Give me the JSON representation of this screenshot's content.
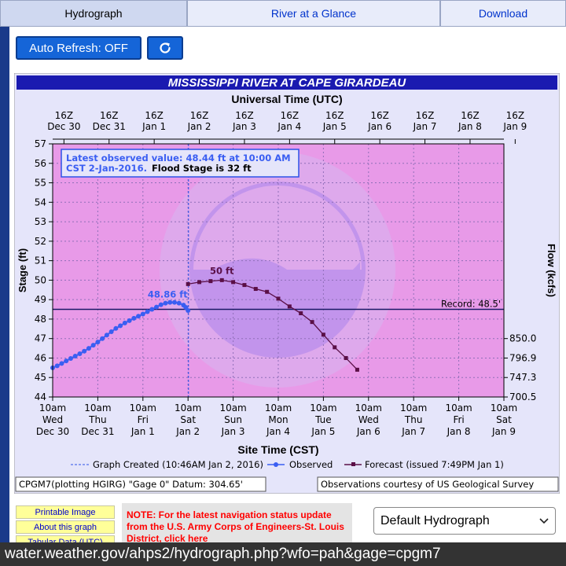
{
  "tabs": [
    {
      "label": "Hydrograph",
      "active": true
    },
    {
      "label": "River at a Glance",
      "active": false
    },
    {
      "label": "Download",
      "active": false
    }
  ],
  "controls": {
    "auto_refresh_label": "Auto Refresh: OFF",
    "refresh_icon": "refresh-icon"
  },
  "chart_data": {
    "type": "line",
    "title": "MISSISSIPPI RIVER AT CAPE GIRARDEAU",
    "top_axis_title": "Universal Time (UTC)",
    "top_ticks": [
      {
        "hour": "16Z",
        "date": "Dec 30"
      },
      {
        "hour": "16Z",
        "date": "Dec 31"
      },
      {
        "hour": "16Z",
        "date": "Jan 1"
      },
      {
        "hour": "16Z",
        "date": "Jan 2"
      },
      {
        "hour": "16Z",
        "date": "Jan 3"
      },
      {
        "hour": "16Z",
        "date": "Jan 4"
      },
      {
        "hour": "16Z",
        "date": "Jan 5"
      },
      {
        "hour": "16Z",
        "date": "Jan 6"
      },
      {
        "hour": "16Z",
        "date": "Jan 7"
      },
      {
        "hour": "16Z",
        "date": "Jan 8"
      },
      {
        "hour": "16Z",
        "date": "Jan 9"
      }
    ],
    "bottom_ticks": [
      {
        "time": "10am",
        "day": "Wed",
        "date": "Dec 30"
      },
      {
        "time": "10am",
        "day": "Thu",
        "date": "Dec 31"
      },
      {
        "time": "10am",
        "day": "Fri",
        "date": "Jan 1"
      },
      {
        "time": "10am",
        "day": "Sat",
        "date": "Jan 2"
      },
      {
        "time": "10am",
        "day": "Sun",
        "date": "Jan 3"
      },
      {
        "time": "10am",
        "day": "Mon",
        "date": "Jan 4"
      },
      {
        "time": "10am",
        "day": "Tue",
        "date": "Jan 5"
      },
      {
        "time": "10am",
        "day": "Wed",
        "date": "Jan 6"
      },
      {
        "time": "10am",
        "day": "Thu",
        "date": "Jan 7"
      },
      {
        "time": "10am",
        "day": "Fri",
        "date": "Jan 8"
      },
      {
        "time": "10am",
        "day": "Sat",
        "date": "Jan 9"
      }
    ],
    "xlabel": "Site Time (CST)",
    "ylabel": "Stage (ft)",
    "y2label": "Flow (kcfs)",
    "xlim": [
      0,
      10
    ],
    "ylim": [
      44,
      57
    ],
    "yticks": [
      44,
      45,
      46,
      47,
      48,
      49,
      50,
      51,
      52,
      53,
      54,
      55,
      56,
      57
    ],
    "y2ticks": [
      {
        "stage": 47,
        "label": "850.0"
      },
      {
        "stage": 46,
        "label": "796.9"
      },
      {
        "stage": 45,
        "label": "747.3"
      },
      {
        "stage": 44,
        "label": "700.5"
      }
    ],
    "record_stage": 48.5,
    "record_label": "Record: 48.5'",
    "graph_created_x": 3.01,
    "info_line1": "Latest observed value: 48.44 ft at 10:00 AM",
    "info_line2a": "CST 2-Jan-2016.",
    "info_line2b": "Flood Stage is 32 ft",
    "observed_peak_label": "48.86 ft",
    "observed_peak": [
      2.55,
      48.86
    ],
    "forecast_peak_label": "50 ft",
    "forecast_peak": [
      3.75,
      50.0
    ],
    "series": [
      {
        "name": "Observed",
        "color": "#3a5ef2",
        "points": [
          [
            0.0,
            45.5
          ],
          [
            0.1,
            45.6
          ],
          [
            0.2,
            45.72
          ],
          [
            0.3,
            45.85
          ],
          [
            0.4,
            45.98
          ],
          [
            0.5,
            46.1
          ],
          [
            0.6,
            46.22
          ],
          [
            0.7,
            46.35
          ],
          [
            0.8,
            46.5
          ],
          [
            0.9,
            46.66
          ],
          [
            1.0,
            46.82
          ],
          [
            1.1,
            47.0
          ],
          [
            1.2,
            47.18
          ],
          [
            1.3,
            47.35
          ],
          [
            1.4,
            47.52
          ],
          [
            1.5,
            47.66
          ],
          [
            1.6,
            47.8
          ],
          [
            1.7,
            47.92
          ],
          [
            1.8,
            48.04
          ],
          [
            1.9,
            48.15
          ],
          [
            2.0,
            48.26
          ],
          [
            2.1,
            48.38
          ],
          [
            2.2,
            48.5
          ],
          [
            2.3,
            48.62
          ],
          [
            2.4,
            48.74
          ],
          [
            2.5,
            48.82
          ],
          [
            2.6,
            48.86
          ],
          [
            2.7,
            48.86
          ],
          [
            2.8,
            48.82
          ],
          [
            2.9,
            48.72
          ],
          [
            2.95,
            48.6
          ],
          [
            3.0,
            48.44
          ]
        ]
      },
      {
        "name": "Forecast (issued 7:49PM Jan 1)",
        "color": "#5a0f46",
        "points": [
          [
            3.0,
            49.8
          ],
          [
            3.25,
            49.9
          ],
          [
            3.5,
            49.95
          ],
          [
            3.75,
            50.0
          ],
          [
            4.0,
            49.9
          ],
          [
            4.25,
            49.75
          ],
          [
            4.5,
            49.55
          ],
          [
            4.75,
            49.4
          ],
          [
            5.0,
            49.05
          ],
          [
            5.25,
            48.65
          ],
          [
            5.5,
            48.3
          ],
          [
            5.75,
            47.85
          ],
          [
            6.0,
            47.2
          ],
          [
            6.25,
            46.55
          ],
          [
            6.5,
            46.0
          ],
          [
            6.75,
            45.4
          ]
        ]
      }
    ],
    "legend_created": "Graph Created (10:46AM Jan 2, 2016)",
    "legend_observed": "Observed",
    "legend_forecast": "Forecast (issued 7:49PM Jan 1)",
    "footer_left": "CPGM7(plotting HGIRG) \"Gage 0\" Datum: 304.65'",
    "footer_right": "Observations courtesy of US Geological Survey",
    "colors": {
      "plot_bg": "#e89ae8",
      "title_bg": "#1a1ab0",
      "frame_bg": "#e5e5fa",
      "record_line": "#1a1a66"
    }
  },
  "links": [
    {
      "label": "Printable Image"
    },
    {
      "label": "About this graph"
    },
    {
      "label": "Tabular Data (UTC)"
    }
  ],
  "note": {
    "text": "NOTE: For the latest navigation status update from the U.S. Army Corps of Engineers-St. Louis District, click here"
  },
  "select": {
    "value": "Default Hydrograph",
    "icon": "chevron-down-icon"
  },
  "url": {
    "text": "water.weather.gov/ahps2/hydrograph.php?wfo=pah&gage=cpgm7"
  }
}
